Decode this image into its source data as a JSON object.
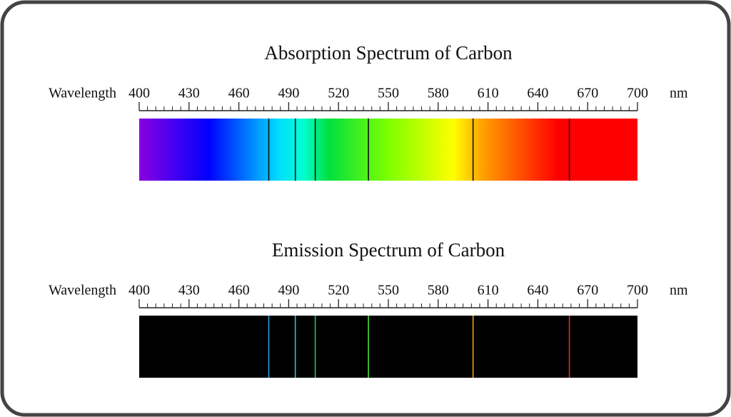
{
  "chart_data": [
    {
      "type": "spectrum",
      "mode": "absorption",
      "title": "Absorption Spectrum of Carbon",
      "xlabel": "Wavelength",
      "unit": "nm",
      "xlim": [
        400,
        700
      ],
      "xticks": [
        400,
        430,
        460,
        490,
        520,
        550,
        580,
        610,
        640,
        670,
        700
      ],
      "lines": [
        478,
        494,
        506,
        538,
        601,
        659
      ],
      "line_color": "#111111"
    },
    {
      "type": "spectrum",
      "mode": "emission",
      "title": "Emission Spectrum of Carbon",
      "xlabel": "Wavelength",
      "unit": "nm",
      "xlim": [
        400,
        700
      ],
      "xticks": [
        400,
        430,
        460,
        490,
        520,
        550,
        580,
        610,
        640,
        670,
        700
      ],
      "lines": [
        478,
        494,
        506,
        538,
        601,
        659
      ],
      "line_colors": [
        "#2a9fd6",
        "#25c6d6",
        "#22c55e",
        "#4ade3a",
        "#f5a21a",
        "#e0301e"
      ]
    }
  ]
}
